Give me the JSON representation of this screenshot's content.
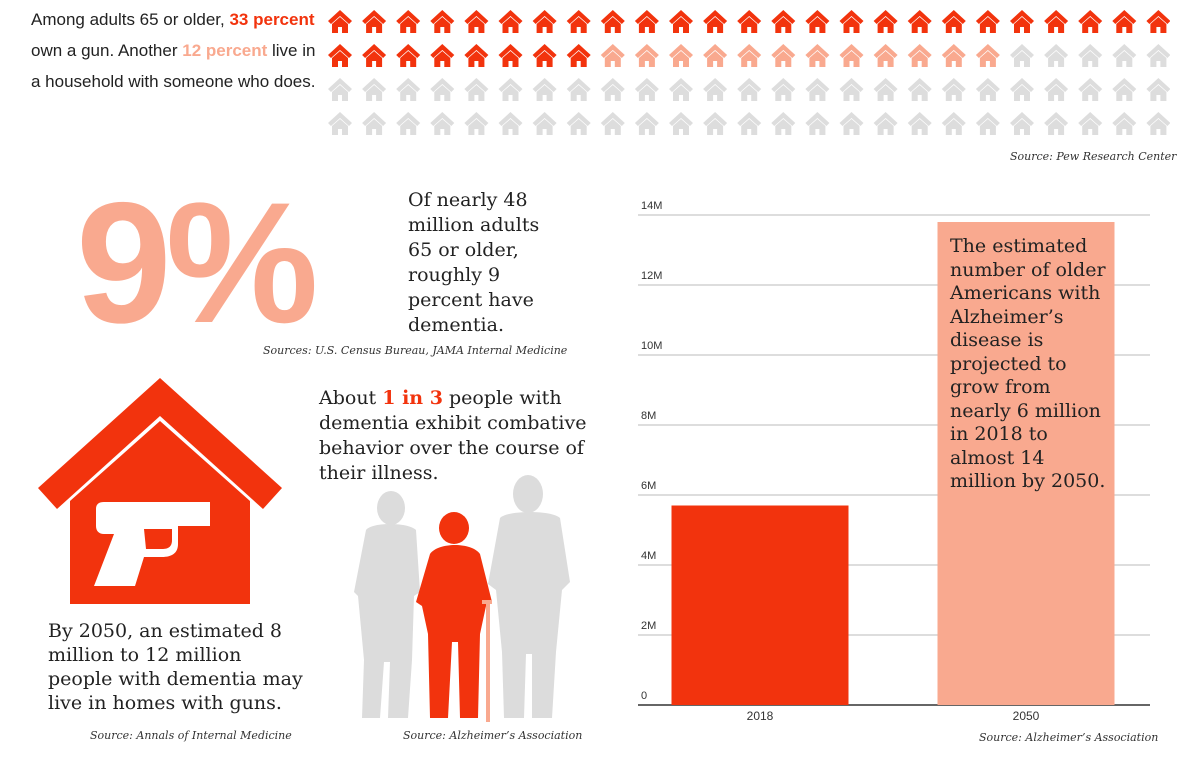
{
  "intro": {
    "before": "Among adults 65 or older, ",
    "own_pct": "33 percent",
    "middle": " own a gun. Another ",
    "household_pct": "12 percent",
    "after": " live in a household with someone who does.",
    "source": "Source: Pew Research Center"
  },
  "house_grid": {
    "total": 100,
    "columns": 25,
    "rows": 4,
    "own": 33,
    "household": 12,
    "none": 55,
    "colors": {
      "own": "#f2330d",
      "household": "#f9a98f",
      "none": "#dddddd"
    },
    "icon": "house-icon"
  },
  "dementia": {
    "percent": "9%",
    "text": "Of nearly 48 million adults 65 or older, roughly 9 percent have dementia.",
    "source": "Sources: U.S. Census Bureau, JAMA Internal Medicine"
  },
  "guns_homes": {
    "icon": "house-with-gun-icon",
    "text": "By 2050, an estimated 8 million to 12 million people with dementia may live in homes with guns.",
    "source": "Source: Annals of Internal Medicine"
  },
  "combative": {
    "before": "About ",
    "ratio": "1 in 3",
    "after": " people with dementia exhibit combative behavior over the course of their illness.",
    "icon": "people-silhouettes-icon",
    "source": "Source: Alzheimer’s Association"
  },
  "colors": {
    "accent": "#f2330d",
    "light": "#f9a98f",
    "gray": "#dddddd"
  },
  "chart_data": {
    "type": "bar",
    "categories": [
      "2018",
      "2050"
    ],
    "values": [
      5700000,
      13800000
    ],
    "bar_colors": [
      "#f2330d",
      "#f9a98f"
    ],
    "yticks": [
      0,
      2000000,
      4000000,
      6000000,
      8000000,
      10000000,
      12000000,
      14000000
    ],
    "ytick_labels": [
      "0",
      "2M",
      "4M",
      "6M",
      "8M",
      "10M",
      "12M",
      "14M"
    ],
    "ylim": [
      0,
      14000000
    ],
    "grid": true,
    "annotation": "The estimated number of older Americans with Alzheimer’s disease is projected to grow from nearly 6 million in 2018 to almost 14 million by 2050.",
    "source": "Source: Alzheimer’s Association"
  }
}
